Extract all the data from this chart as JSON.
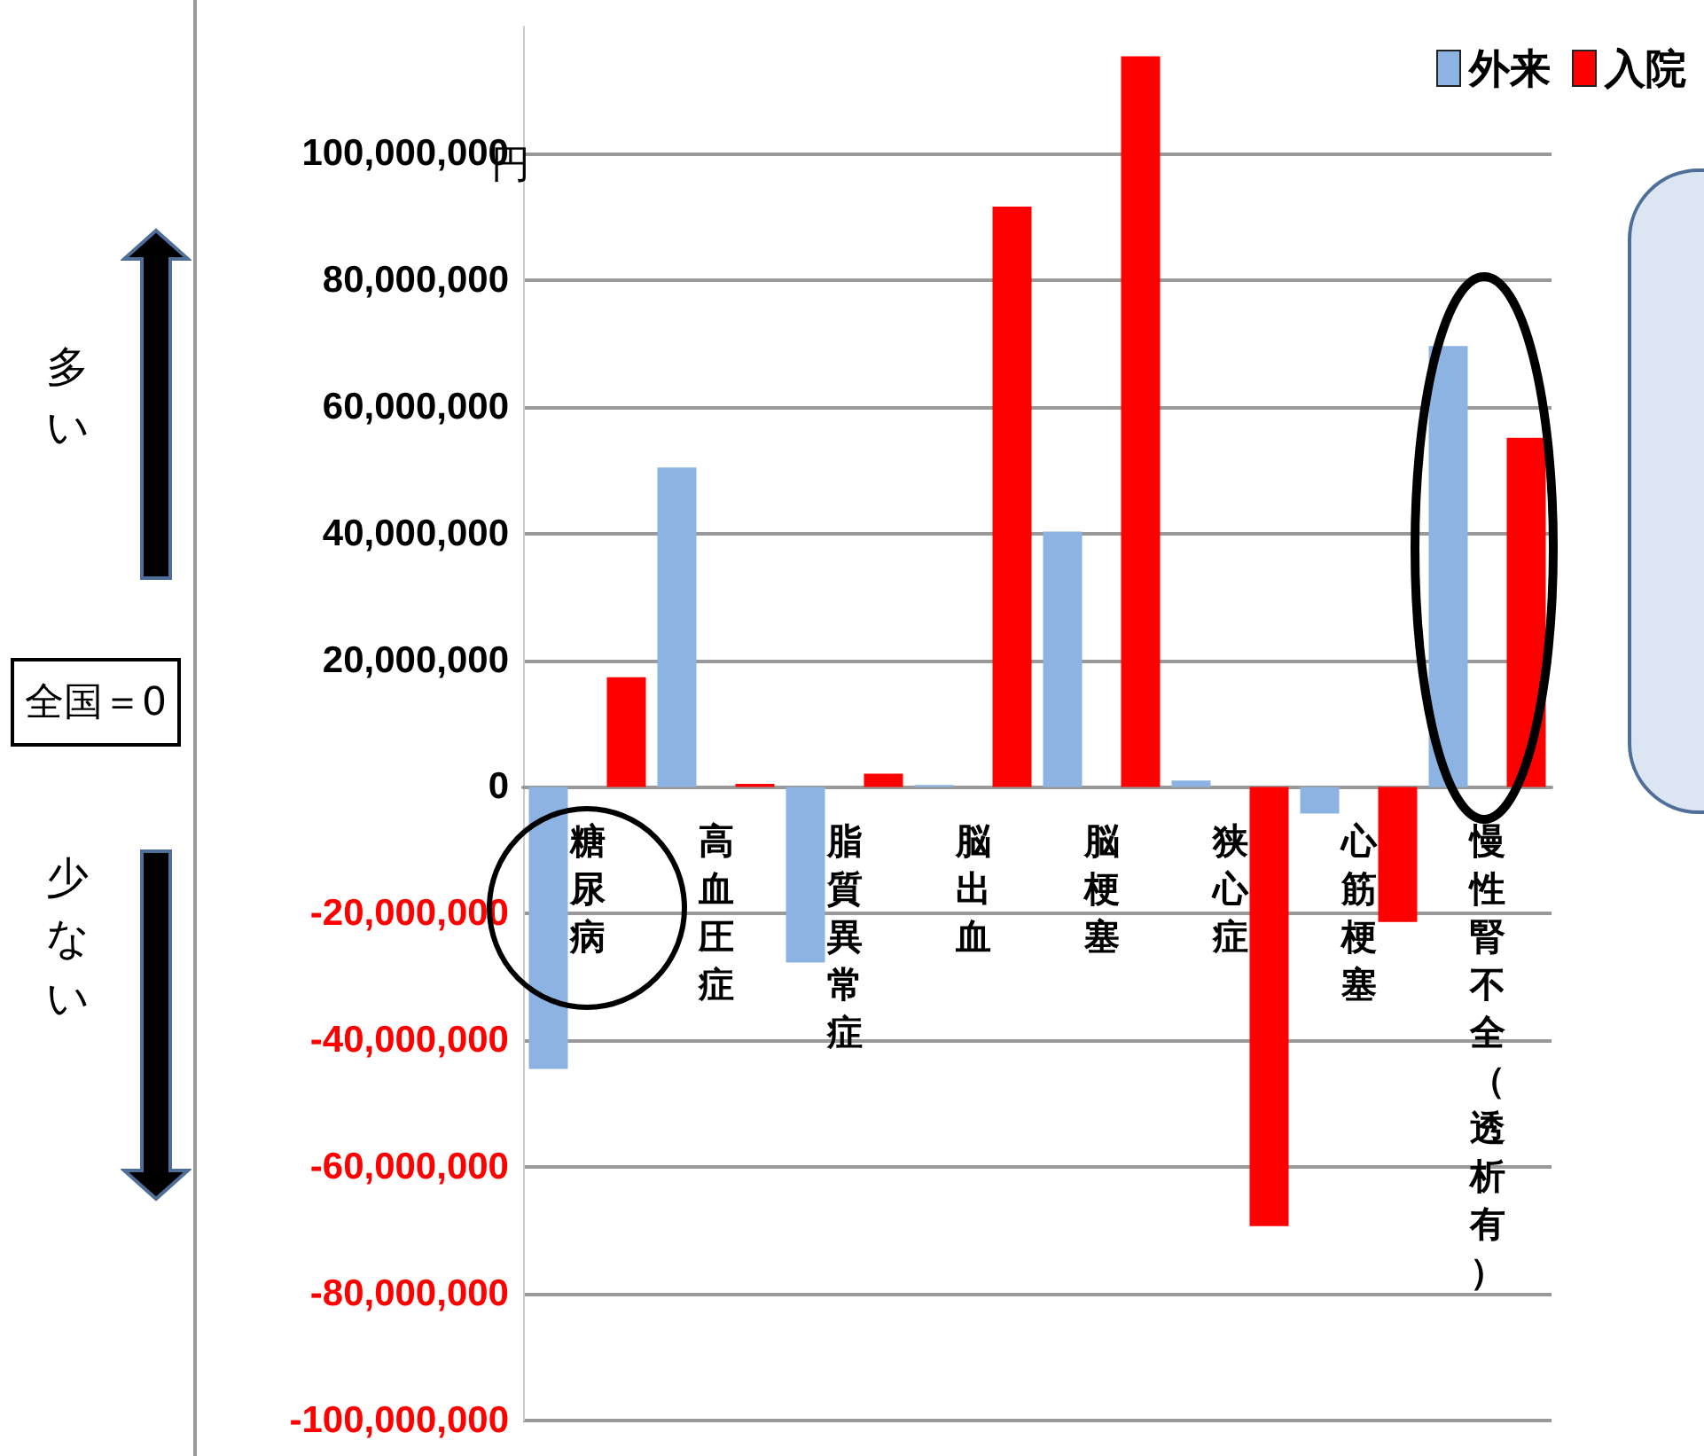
{
  "chart_data": {
    "type": "bar",
    "categories": [
      "糖尿病",
      "高血圧症",
      "脂質異常症",
      "脳出血",
      "脳梗塞",
      "狭心症",
      "心筋梗塞",
      "慢性腎不全（透析有）"
    ],
    "series": [
      {
        "name": "外来",
        "color": "#8db3e2",
        "values": [
          -44500000,
          50400000,
          -27700000,
          300000,
          40300000,
          1000000,
          -4200000,
          69600000
        ]
      },
      {
        "name": "入院",
        "color": "#ff0000",
        "values": [
          17300000,
          500000,
          2100000,
          91600000,
          115300000,
          -69300000,
          -21300000,
          55100000
        ]
      }
    ],
    "ylim": [
      -100000000,
      120000000
    ],
    "yticks": [
      {
        "value": -100000000,
        "label": "-100,000,000"
      },
      {
        "value": -80000000,
        "label": "-80,000,000"
      },
      {
        "value": -60000000,
        "label": "-60,000,000"
      },
      {
        "value": -40000000,
        "label": "-40,000,000"
      },
      {
        "value": -20000000,
        "label": "-20,000,000"
      },
      0,
      {
        "value": 20000000,
        "label": "20,000,000"
      },
      {
        "value": 40000000,
        "label": "40,000,000"
      },
      {
        "value": 60000000,
        "label": "60,000,000"
      },
      {
        "value": 80000000,
        "label": "80,000,000"
      },
      {
        "value": 100000000,
        "label": "100,000,000"
      }
    ],
    "grid": "y",
    "legend": "top right",
    "annotations": [
      "円",
      "多い",
      "少ない",
      "全国＝0"
    ]
  }
}
